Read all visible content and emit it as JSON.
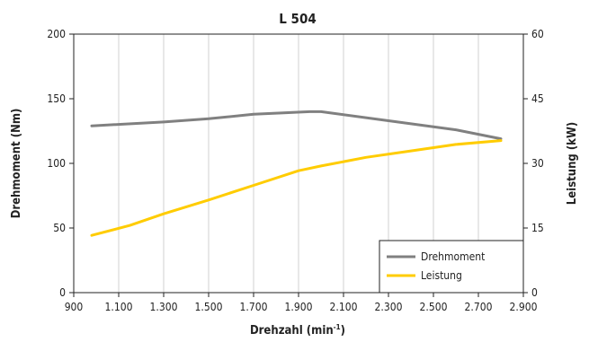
{
  "chart_data": {
    "type": "line",
    "title": "L 504",
    "xlabel": "Drehzahl (min",
    "xlabel_sup": "-1",
    "xlabel_close": ")",
    "ylabel_left": "Drehmoment (Nm)",
    "ylabel_right": "Leistung (kW)",
    "xlim": [
      900,
      2900
    ],
    "ylim_left": [
      0,
      200
    ],
    "ylim_right": [
      0,
      60
    ],
    "x_ticks": [
      "900",
      "1.100",
      "1.300",
      "1.500",
      "1.700",
      "1.900",
      "2.100",
      "2.300",
      "2.500",
      "2.700",
      "2.900"
    ],
    "y_ticks_left": [
      "0",
      "50",
      "100",
      "150",
      "200"
    ],
    "y_ticks_right": [
      "0",
      "15",
      "30",
      "45",
      "60"
    ],
    "grid": true,
    "legend_position": "bottom-right",
    "series": [
      {
        "name": "Drehmoment",
        "axis": "left",
        "color": "#808080",
        "x": [
          980,
          1300,
          1500,
          1700,
          1950,
          2000,
          2300,
          2600,
          2800
        ],
        "y": [
          129,
          132,
          134.5,
          138,
          140,
          140,
          133,
          126,
          119
        ]
      },
      {
        "name": "Leistung",
        "axis": "right",
        "color": "#ffcc00",
        "x": [
          980,
          1150,
          1300,
          1500,
          1700,
          1900,
          2000,
          2200,
          2400,
          2600,
          2800
        ],
        "y": [
          13.3,
          15.6,
          18.3,
          21.5,
          24.9,
          28.3,
          29.4,
          31.4,
          32.9,
          34.4,
          35.3
        ]
      }
    ]
  }
}
